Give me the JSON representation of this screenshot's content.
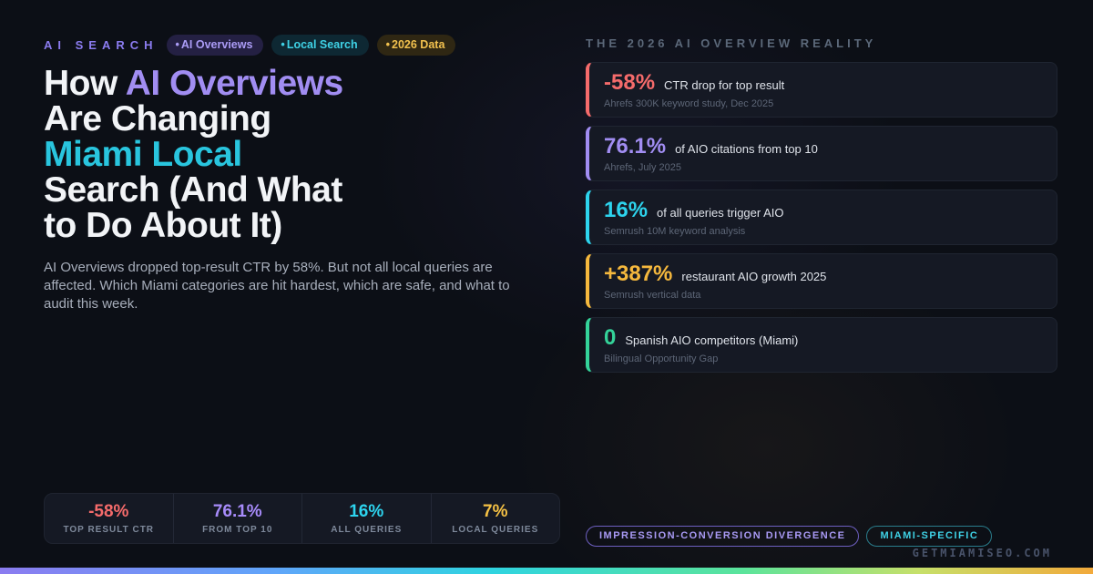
{
  "ui": {
    "dot": "•"
  },
  "brand": {
    "label": "AI SEARCH",
    "color": "#8b7cf0"
  },
  "top_badges": [
    {
      "label": "AI Overviews",
      "color": "#ab9cf6",
      "bg": "#242043"
    },
    {
      "label": "Local Search",
      "color": "#3fd2e6",
      "bg": "#0e2833"
    },
    {
      "label": "2026 Data",
      "color": "#f2c14e",
      "bg": "#2f2713"
    }
  ],
  "headline": {
    "seg1": "How ",
    "seg2": "AI Overviews",
    "seg3": "Are Changing",
    "seg4": "Miami Local",
    "seg5": "Search (And What",
    "seg6": "to Do About It)",
    "accent_purple": "#a18df2",
    "accent_cyan": "#29c5de"
  },
  "lede": "AI Overviews dropped top-result CTR by 58%. But not all local queries are affected. Which Miami categories are hit hardest, which are safe, and what to audit this week.",
  "summary_stats": [
    {
      "value": "-58%",
      "label": "TOP RESULT CTR",
      "color": "#f56b6b"
    },
    {
      "value": "76.1%",
      "label": "FROM TOP 10",
      "color": "#a78bfa"
    },
    {
      "value": "16%",
      "label": "ALL QUERIES",
      "color": "#2dd4ee"
    },
    {
      "value": "7%",
      "label": "LOCAL QUERIES",
      "color": "#f5c144"
    }
  ],
  "right_panel": {
    "title": "THE 2026 AI OVERVIEW REALITY",
    "cards": [
      {
        "value": "-58%",
        "text": "CTR drop for top result",
        "source": "Ahrefs 300K keyword study, Dec 2025",
        "accent": "#f56b6b"
      },
      {
        "value": "76.1%",
        "text": "of AIO citations from top 10",
        "source": "Ahrefs, July 2025",
        "accent": "#a18df2"
      },
      {
        "value": "16%",
        "text": "of all queries trigger AIO",
        "source": "Semrush 10M keyword analysis",
        "accent": "#2dd4ee"
      },
      {
        "value": "+387%",
        "text": "restaurant AIO growth 2025",
        "source": "Semrush vertical data",
        "accent": "#f5b83d"
      },
      {
        "value": "0",
        "text": "Spanish AIO competitors (Miami)",
        "source": "Bilingual Opportunity Gap",
        "accent": "#34d399"
      }
    ],
    "tags": [
      {
        "label": "IMPRESSION-CONVERSION DIVERGENCE",
        "color": "#a99af5",
        "border": "#6d5fc0"
      },
      {
        "label": "MIAMI-SPECIFIC",
        "color": "#3fd2e6",
        "border": "#2a7d8c"
      }
    ]
  },
  "footer": {
    "site": "GETMIAMISEO.COM"
  }
}
